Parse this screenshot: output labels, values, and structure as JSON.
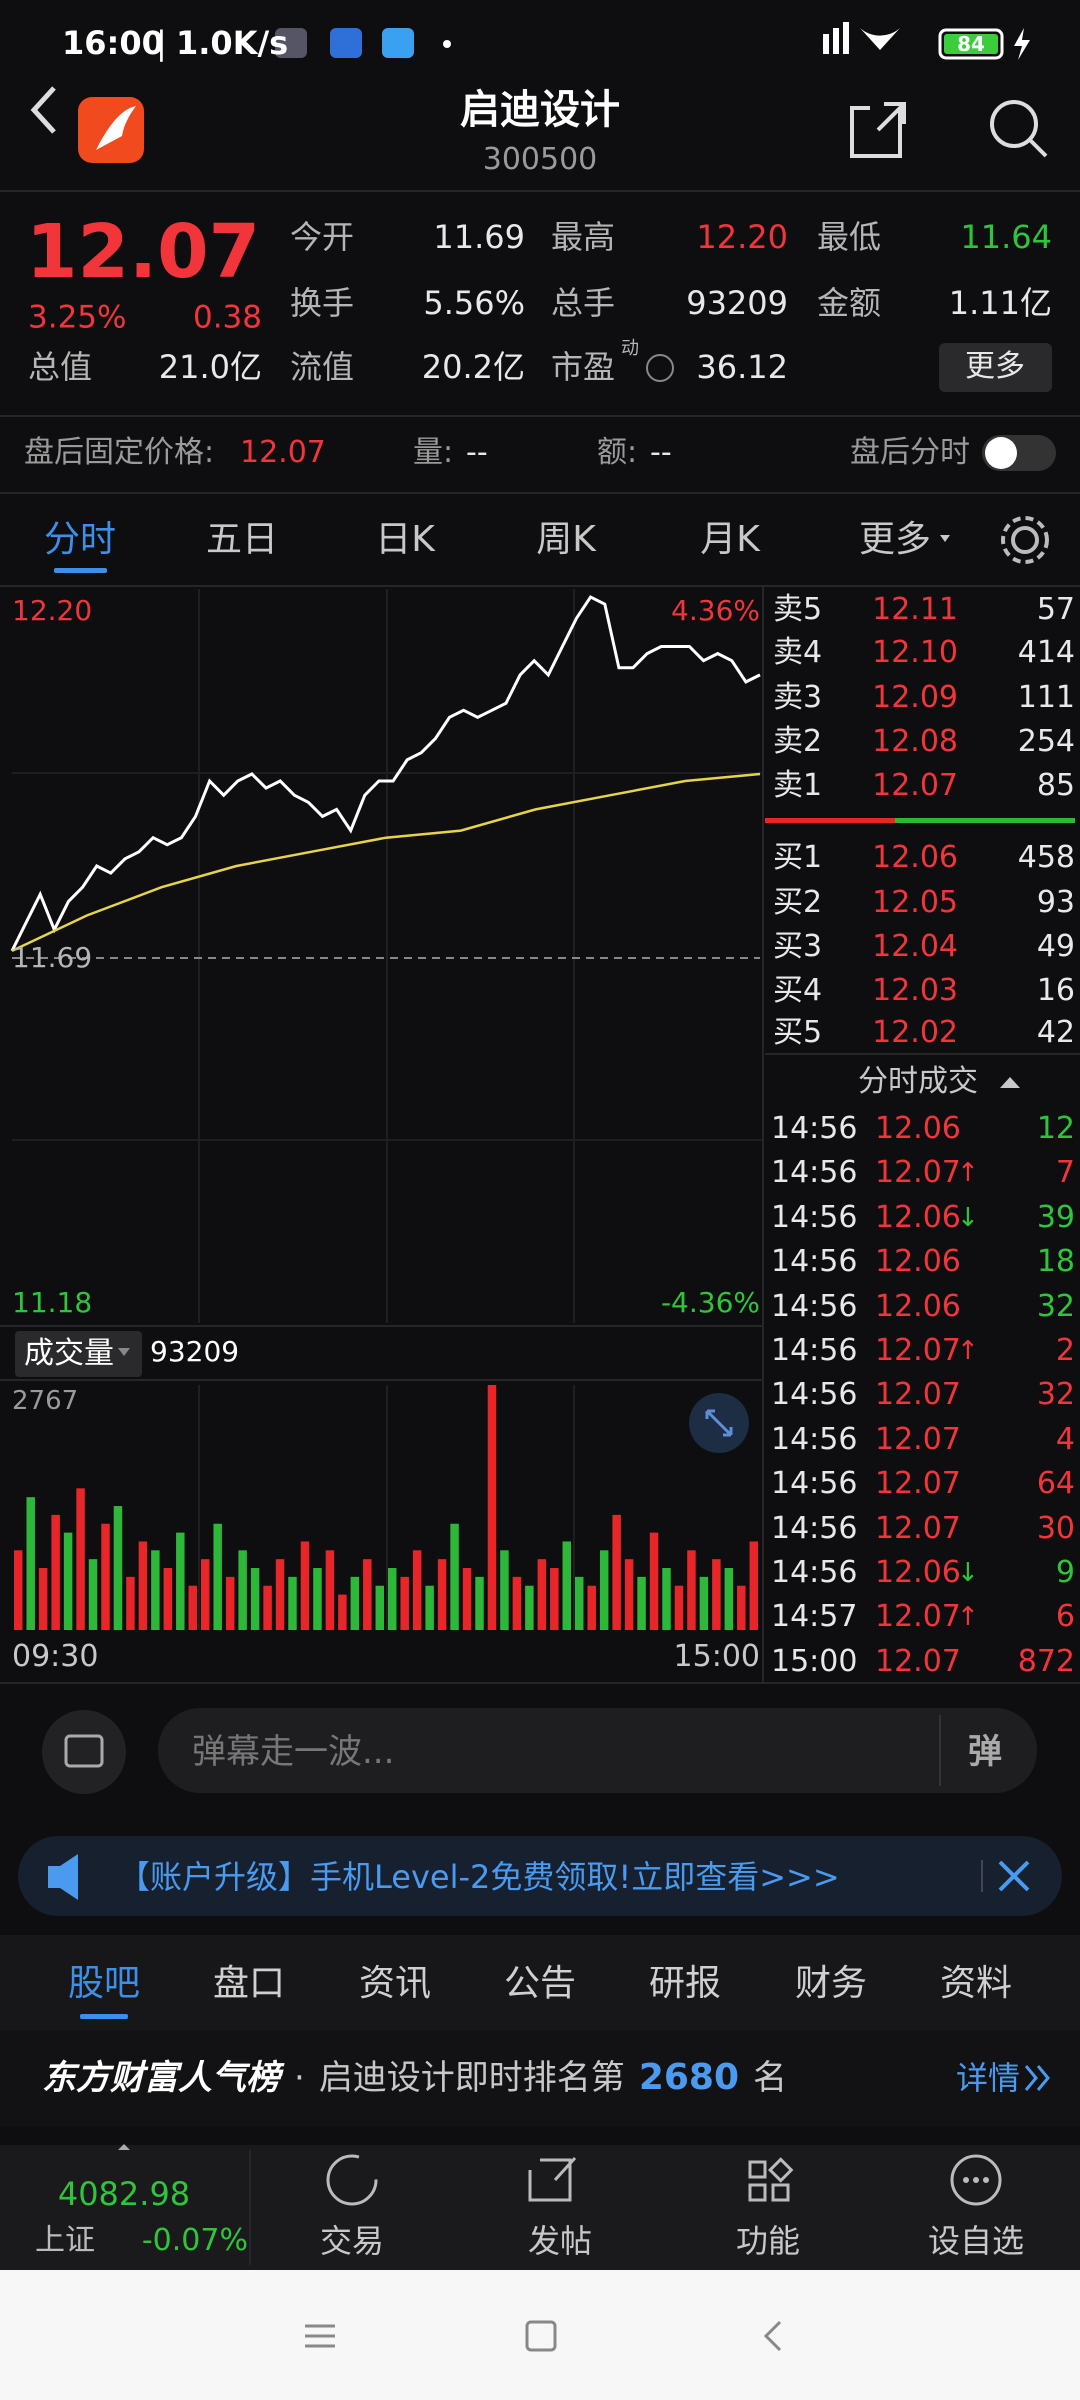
{
  "status_bar": {
    "time": "16:00",
    "separator": "|",
    "speed": "1.0K/s",
    "battery": "84"
  },
  "header": {
    "title": "启迪设计",
    "code": "300500"
  },
  "quote": {
    "price": "12.07",
    "change_pct": "3.25%",
    "change": "0.38",
    "stats": [
      {
        "label": "今开",
        "value": "11.69",
        "color": "#e8e8e8"
      },
      {
        "label": "最高",
        "value": "12.20",
        "color": "#f2353a"
      },
      {
        "label": "最低",
        "value": "11.64",
        "color": "#2fc53b"
      },
      {
        "label": "换手",
        "value": "5.56%",
        "color": "#e8e8e8"
      },
      {
        "label": "总手",
        "value": "93209",
        "color": "#e8e8e8"
      },
      {
        "label": "金额",
        "value": "1.11亿",
        "color": "#e8e8e8"
      },
      {
        "label": "总值",
        "value": "21.0亿",
        "color": "#e8e8e8"
      },
      {
        "label": "流值",
        "value": "20.2亿",
        "color": "#e8e8e8"
      },
      {
        "label": "市盈",
        "value": "36.12",
        "badge": "动",
        "color": "#e8e8e8"
      }
    ],
    "more_button": "更多"
  },
  "after_hours": {
    "label": "盘后固定价格:",
    "price": "12.07",
    "volume_label": "量:",
    "volume": "--",
    "amount_label": "额:",
    "amount": "--",
    "toggle_label": "盘后分时"
  },
  "tabs": [
    "分时",
    "五日",
    "日K",
    "周K",
    "月K",
    "更多"
  ],
  "chart_data": [
    {
      "type": "line",
      "ylim": [
        11.18,
        12.2
      ],
      "yticks": [
        {
          "value": 12.2,
          "label": "12.20"
        },
        11.69,
        11.18
      ],
      "y2lim": [
        -4.36,
        4.36
      ],
      "y2ticks": [
        {
          "value": 4.36,
          "label": "4.36%"
        },
        {
          "value": -4.36,
          "label": "-4.36%"
        }
      ],
      "series": [
        {
          "color": "#ffffff",
          "values": [
            11.7,
            11.74,
            11.78,
            11.73,
            11.77,
            11.79,
            11.82,
            11.81,
            11.83,
            11.84,
            11.86,
            11.85,
            11.86,
            11.89,
            11.94,
            11.92,
            11.94,
            11.95,
            11.93,
            11.94,
            11.92,
            11.91,
            11.89,
            11.9,
            11.87,
            11.92,
            11.94,
            11.94,
            11.97,
            11.98,
            12.0,
            12.03,
            12.04,
            12.03,
            12.04,
            12.05,
            12.09,
            12.11,
            12.09,
            12.13,
            12.17,
            12.2,
            12.19,
            12.1,
            12.1,
            12.12,
            12.13,
            12.13,
            12.13,
            12.11,
            12.12,
            12.11,
            12.08,
            12.09
          ]
        },
        {
          "color": "#e6d34a",
          "values": [
            11.7,
            11.75,
            11.79,
            11.82,
            11.84,
            11.86,
            11.87,
            11.9,
            11.92,
            11.94,
            11.95
          ]
        }
      ]
    },
    {
      "type": "bar",
      "title": "成交量",
      "total": "93209",
      "ylim": [
        0,
        2767
      ],
      "yticks": [
        2767
      ],
      "up_color": "#e8262a",
      "down_color": "#2db83a",
      "categories": [
        "09:30",
        null,
        null,
        null,
        null,
        null,
        null,
        null,
        null,
        null,
        null,
        null,
        null,
        null,
        null,
        null,
        null,
        null,
        null,
        null,
        null,
        null,
        null,
        null,
        null,
        null,
        null,
        null,
        null,
        null,
        null,
        null,
        null,
        null,
        null,
        null,
        null,
        null,
        null,
        null,
        null,
        null,
        null,
        null,
        null,
        null,
        null,
        null,
        null,
        null,
        null,
        null,
        null,
        null,
        null,
        null,
        null,
        null,
        null,
        "15:00"
      ],
      "values": [
        900,
        1500,
        700,
        1300,
        1100,
        1600,
        800,
        1200,
        1400,
        600,
        1000,
        900,
        700,
        1100,
        500,
        800,
        1200,
        600,
        900,
        700,
        500,
        800,
        600,
        1000,
        700,
        900,
        400,
        600,
        800,
        500,
        700,
        600,
        900,
        500,
        800,
        1200,
        700,
        600,
        2767,
        900,
        600,
        500,
        800,
        700,
        1000,
        600,
        500,
        900,
        1300,
        800,
        600,
        1100,
        700,
        500,
        900,
        600,
        800,
        700,
        500,
        1000
      ],
      "up": [
        true,
        false,
        true,
        true,
        false,
        true,
        false,
        true,
        false,
        true,
        true,
        false,
        true,
        false,
        true,
        true,
        false,
        true,
        false,
        false,
        true,
        true,
        false,
        true,
        false,
        true,
        true,
        false,
        true,
        false,
        false,
        true,
        true,
        false,
        true,
        false,
        true,
        false,
        true,
        false,
        true,
        false,
        true,
        true,
        false,
        false,
        true,
        false,
        true,
        true,
        false,
        true,
        false,
        true,
        true,
        false,
        true,
        false,
        true,
        true
      ]
    }
  ],
  "order_book": {
    "asks": [
      {
        "label": "卖5",
        "price": "12.11",
        "volume": "57"
      },
      {
        "label": "卖4",
        "price": "12.10",
        "volume": "414"
      },
      {
        "label": "卖3",
        "price": "12.09",
        "volume": "111"
      },
      {
        "label": "卖2",
        "price": "12.08",
        "volume": "254"
      },
      {
        "label": "卖1",
        "price": "12.07",
        "volume": "85"
      }
    ],
    "bids": [
      {
        "label": "买1",
        "price": "12.06",
        "volume": "458"
      },
      {
        "label": "买2",
        "price": "12.05",
        "volume": "93"
      },
      {
        "label": "买3",
        "price": "12.04",
        "volume": "49"
      },
      {
        "label": "买4",
        "price": "12.03",
        "volume": "16"
      },
      {
        "label": "买5",
        "price": "12.02",
        "volume": "42"
      }
    ]
  },
  "trades": {
    "title": "分时成交",
    "rows": [
      {
        "time": "14:56",
        "price": "12.06",
        "volume": "12",
        "side": "sell"
      },
      {
        "time": "14:56",
        "price": "12.07",
        "arrow": "↑",
        "volume": "7",
        "side": "buy"
      },
      {
        "time": "14:56",
        "price": "12.06",
        "arrow": "↓",
        "volume": "39",
        "side": "sell"
      },
      {
        "time": "14:56",
        "price": "12.06",
        "volume": "18",
        "side": "sell"
      },
      {
        "time": "14:56",
        "price": "12.06",
        "volume": "32",
        "side": "sell"
      },
      {
        "time": "14:56",
        "price": "12.07",
        "arrow": "↑",
        "volume": "2",
        "side": "buy"
      },
      {
        "time": "14:56",
        "price": "12.07",
        "volume": "32",
        "side": "buy"
      },
      {
        "time": "14:56",
        "price": "12.07",
        "volume": "4",
        "side": "buy"
      },
      {
        "time": "14:56",
        "price": "12.07",
        "volume": "64",
        "side": "buy"
      },
      {
        "time": "14:56",
        "price": "12.07",
        "volume": "30",
        "side": "buy"
      },
      {
        "time": "14:56",
        "price": "12.06",
        "arrow": "↓",
        "volume": "9",
        "side": "sell"
      },
      {
        "time": "14:57",
        "price": "12.07",
        "arrow": "↑",
        "volume": "6",
        "side": "buy"
      },
      {
        "time": "15:00",
        "price": "12.07",
        "volume": "872",
        "side": "buy"
      }
    ]
  },
  "comment_bar": {
    "placeholder": "弹幕走一波...",
    "button": "弹"
  },
  "banner": {
    "text": "【账户升级】手机Level-2免费领取!立即查看>>>"
  },
  "sections": [
    "股吧",
    "盘口",
    "资讯",
    "公告",
    "研报",
    "财务",
    "资料"
  ],
  "ranking": {
    "brand": "东方财富人气榜",
    "dot": "·",
    "text": "启迪设计即时排名第",
    "rank": "2680",
    "suffix": "名",
    "details": "详情"
  },
  "bottom_bar": {
    "index_value": "4082.98",
    "index_name": "上证",
    "index_change": "-0.07%",
    "items": [
      "交易",
      "发帖",
      "功能",
      "设自选"
    ]
  }
}
